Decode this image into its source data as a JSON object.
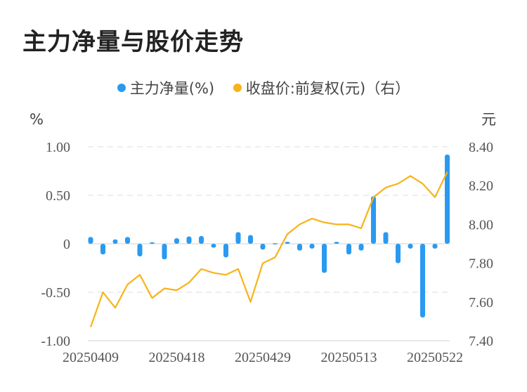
{
  "title": "主力净量与股价走势",
  "colors": {
    "bar": "#2a9af0",
    "line": "#f7b319",
    "grid": "#e8e8e8"
  },
  "chart_data": {
    "type": "bar+line",
    "legend": {
      "placement": "top-center"
    },
    "grid": true,
    "left_axis": {
      "unit": "%",
      "ylim": [
        -1.0,
        1.0
      ],
      "ticks": [
        "1.00",
        "0.50",
        "0",
        "-0.50",
        "-1.00"
      ],
      "tick_values": [
        1,
        0.5,
        0,
        -0.5,
        -1
      ]
    },
    "right_axis": {
      "unit": "元",
      "ylim": [
        7.4,
        8.4
      ],
      "ticks": [
        "8.40",
        "8.20",
        "8.00",
        "7.80",
        "7.60",
        "7.40"
      ],
      "tick_values": [
        8.4,
        8.2,
        8.0,
        7.8,
        7.6,
        7.4
      ]
    },
    "x_tick_labels": [
      "20250409",
      "20250418",
      "20250429",
      "20250513",
      "20250522"
    ],
    "x": [
      "20250409",
      "20250410",
      "20250411",
      "20250414",
      "20250415",
      "20250416",
      "20250417",
      "20250418",
      "20250421",
      "20250422",
      "20250423",
      "20250424",
      "20250425",
      "20250428",
      "20250429",
      "20250430",
      "20250506",
      "20250507",
      "20250508",
      "20250509",
      "20250512",
      "20250513",
      "20250514",
      "20250515",
      "20250516",
      "20250519",
      "20250520",
      "20250521",
      "20250522",
      "20250523"
    ],
    "series": [
      {
        "name": "主力净量(%)",
        "type": "bar",
        "axis": "left",
        "values": [
          0.07,
          -0.11,
          0.045,
          0.07,
          -0.13,
          0.015,
          -0.16,
          0.057,
          0.075,
          0.08,
          -0.04,
          -0.14,
          0.12,
          0.09,
          -0.06,
          0.005,
          0.02,
          -0.07,
          -0.05,
          -0.3,
          0.02,
          -0.11,
          -0.07,
          0.49,
          0.12,
          -0.2,
          -0.05,
          -0.76,
          -0.05,
          0.92
        ]
      },
      {
        "name": "收盘价:前复权(元)（右）",
        "type": "line",
        "axis": "right",
        "values": [
          7.47,
          7.65,
          7.57,
          7.69,
          7.74,
          7.62,
          7.67,
          7.66,
          7.7,
          7.77,
          7.75,
          7.74,
          7.77,
          7.6,
          7.8,
          7.83,
          7.95,
          8.0,
          8.03,
          8.01,
          8.0,
          8.0,
          7.98,
          8.14,
          8.19,
          8.21,
          8.25,
          8.21,
          8.14,
          8.27
        ]
      }
    ]
  }
}
